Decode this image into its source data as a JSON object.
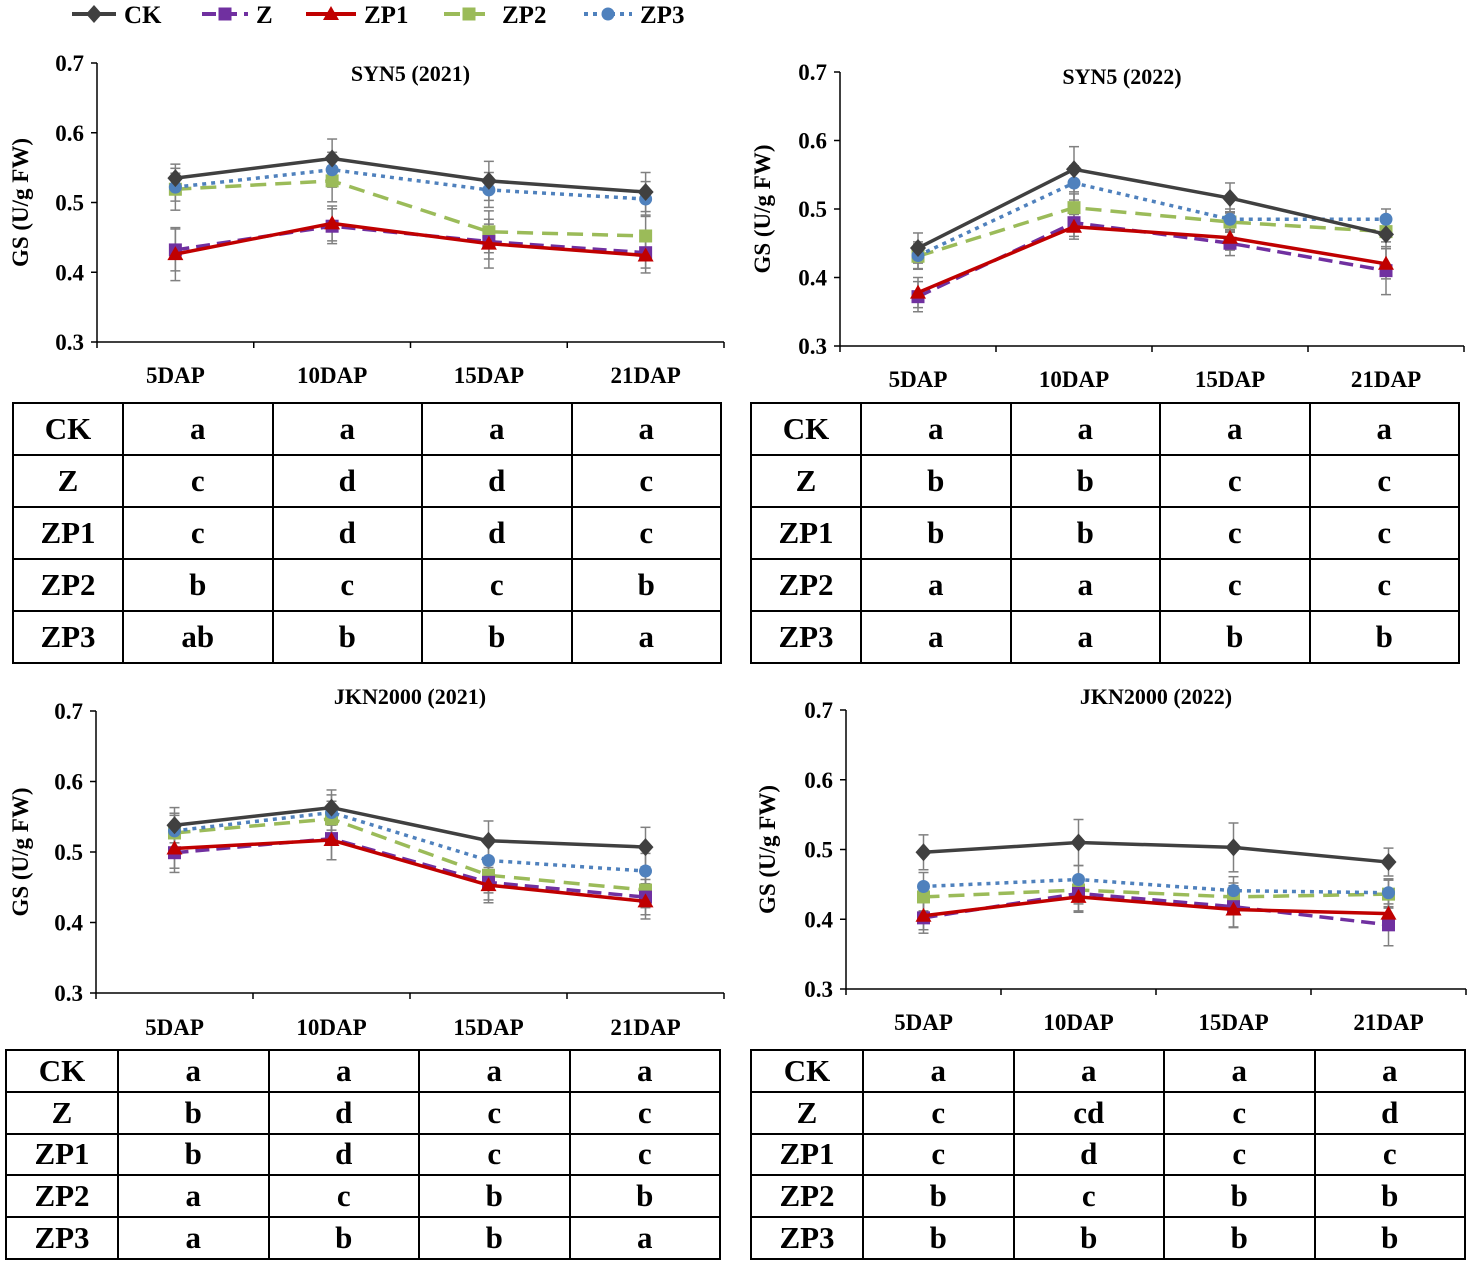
{
  "legend": [
    {
      "label": "CK",
      "color": "#404040",
      "marker": "diamond",
      "dash": "solid"
    },
    {
      "label": "Z",
      "color": "#7030A0",
      "marker": "square",
      "dash": "long-dash"
    },
    {
      "label": "ZP1",
      "color": "#C00000",
      "marker": "triangle",
      "dash": "solid"
    },
    {
      "label": "ZP2",
      "color": "#9BBB59",
      "marker": "square",
      "dash": "dash"
    },
    {
      "label": "ZP3",
      "color": "#4F81BD",
      "marker": "circle",
      "dash": "dot"
    }
  ],
  "chart_data": [
    {
      "type": "line",
      "title": "SYN5 (2021)",
      "ylabel": "GS (U/g FW)",
      "xlabel": "",
      "categories": [
        "5DAP",
        "10DAP",
        "15DAP",
        "21DAP"
      ],
      "ylim": [
        0.3,
        0.7
      ],
      "yticks": [
        0.3,
        0.4,
        0.5,
        0.6,
        0.7
      ],
      "ytick_labels": [
        "0.3",
        "0.4",
        "0.5",
        "0.6",
        "0.7"
      ],
      "series": [
        {
          "name": "CK",
          "values": [
            0.535,
            0.563,
            0.531,
            0.515
          ],
          "errors": [
            0.02,
            0.028,
            0.028,
            0.028
          ]
        },
        {
          "name": "Z",
          "values": [
            0.432,
            0.466,
            0.444,
            0.428
          ],
          "errors": [
            0.03,
            0.025,
            0.025,
            0.022
          ]
        },
        {
          "name": "ZP1",
          "values": [
            0.426,
            0.47,
            0.441,
            0.424
          ],
          "errors": [
            0.038,
            0.025,
            0.035,
            0.025
          ]
        },
        {
          "name": "ZP2",
          "values": [
            0.519,
            0.531,
            0.458,
            0.452
          ],
          "errors": [
            0.03,
            0.03,
            0.03,
            0.03
          ]
        },
        {
          "name": "ZP3",
          "values": [
            0.522,
            0.547,
            0.518,
            0.505
          ],
          "errors": [
            0.02,
            0.025,
            0.025,
            0.025
          ]
        }
      ],
      "significance": {
        "columns": [
          "5DAP",
          "10DAP",
          "15DAP",
          "21DAP"
        ],
        "rows": [
          {
            "label": "CK",
            "cells": [
              "a",
              "a",
              "a",
              "a"
            ]
          },
          {
            "label": "Z",
            "cells": [
              "c",
              "d",
              "d",
              "c"
            ]
          },
          {
            "label": "ZP1",
            "cells": [
              "c",
              "d",
              "d",
              "c"
            ]
          },
          {
            "label": "ZP2",
            "cells": [
              "b",
              "c",
              "c",
              "b"
            ]
          },
          {
            "label": "ZP3",
            "cells": [
              "ab",
              "b",
              "b",
              "a"
            ]
          }
        ]
      }
    },
    {
      "type": "line",
      "title": "SYN5 (2022)",
      "ylabel": "GS (U/g FW)",
      "xlabel": "",
      "categories": [
        "5DAP",
        "10DAP",
        "15DAP",
        "21DAP"
      ],
      "ylim": [
        0.3,
        0.7
      ],
      "yticks": [
        0.3,
        0.4,
        0.5,
        0.6,
        0.7
      ],
      "ytick_labels": [
        "0.3",
        "0.4",
        "0.5",
        "0.6",
        "0.7"
      ],
      "series": [
        {
          "name": "CK",
          "values": [
            0.443,
            0.558,
            0.516,
            0.463
          ],
          "errors": [
            0.022,
            0.033,
            0.022,
            0.018
          ]
        },
        {
          "name": "Z",
          "values": [
            0.372,
            0.48,
            0.45,
            0.41
          ],
          "errors": [
            0.022,
            0.02,
            0.018,
            0.035
          ]
        },
        {
          "name": "ZP1",
          "values": [
            0.378,
            0.474,
            0.458,
            0.42
          ],
          "errors": [
            0.022,
            0.018,
            0.018,
            0.022
          ]
        },
        {
          "name": "ZP2",
          "values": [
            0.431,
            0.502,
            0.481,
            0.467
          ],
          "errors": [
            0.018,
            0.02,
            0.015,
            0.015
          ]
        },
        {
          "name": "ZP3",
          "values": [
            0.432,
            0.538,
            0.485,
            0.485
          ],
          "errors": [
            0.02,
            0.025,
            0.015,
            0.015
          ]
        }
      ],
      "significance": {
        "columns": [
          "5DAP",
          "10DAP",
          "15DAP",
          "21DAP"
        ],
        "rows": [
          {
            "label": "CK",
            "cells": [
              "a",
              "a",
              "a",
              "a"
            ]
          },
          {
            "label": "Z",
            "cells": [
              "b",
              "b",
              "c",
              "c"
            ]
          },
          {
            "label": "ZP1",
            "cells": [
              "b",
              "b",
              "c",
              "c"
            ]
          },
          {
            "label": "ZP2",
            "cells": [
              "a",
              "a",
              "c",
              "c"
            ]
          },
          {
            "label": "ZP3",
            "cells": [
              "a",
              "a",
              "b",
              "b"
            ]
          }
        ]
      }
    },
    {
      "type": "line",
      "title": "JKN2000 (2021)",
      "ylabel": "GS (U/g FW)",
      "xlabel": "",
      "categories": [
        "5DAP",
        "10DAP",
        "15DAP",
        "21DAP"
      ],
      "ylim": [
        0.3,
        0.7
      ],
      "yticks": [
        0.3,
        0.4,
        0.5,
        0.6,
        0.7
      ],
      "ytick_labels": [
        "0.3",
        "0.4",
        "0.5",
        "0.6",
        "0.7"
      ],
      "series": [
        {
          "name": "CK",
          "values": [
            0.538,
            0.563,
            0.516,
            0.507
          ],
          "errors": [
            0.025,
            0.025,
            0.028,
            0.028
          ]
        },
        {
          "name": "Z",
          "values": [
            0.499,
            0.519,
            0.457,
            0.436
          ],
          "errors": [
            0.028,
            0.03,
            0.025,
            0.025
          ]
        },
        {
          "name": "ZP1",
          "values": [
            0.505,
            0.517,
            0.453,
            0.43
          ],
          "errors": [
            0.028,
            0.028,
            0.025,
            0.025
          ]
        },
        {
          "name": "ZP2",
          "values": [
            0.527,
            0.547,
            0.467,
            0.446
          ],
          "errors": [
            0.025,
            0.025,
            0.025,
            0.025
          ]
        },
        {
          "name": "ZP3",
          "values": [
            0.53,
            0.556,
            0.488,
            0.473
          ],
          "errors": [
            0.025,
            0.025,
            0.025,
            0.025
          ]
        }
      ],
      "significance": {
        "columns": [
          "5DAP",
          "10DAP",
          "15DAP",
          "21DAP"
        ],
        "rows": [
          {
            "label": "CK",
            "cells": [
              "a",
              "a",
              "a",
              "a"
            ]
          },
          {
            "label": "Z",
            "cells": [
              "b",
              "d",
              "c",
              "c"
            ]
          },
          {
            "label": "ZP1",
            "cells": [
              "b",
              "d",
              "c",
              "c"
            ]
          },
          {
            "label": "ZP2",
            "cells": [
              "a",
              "c",
              "b",
              "b"
            ]
          },
          {
            "label": "ZP3",
            "cells": [
              "a",
              "b",
              "b",
              "a"
            ]
          }
        ]
      }
    },
    {
      "type": "line",
      "title": "JKN2000 (2022)",
      "ylabel": "GS (U/g FW)",
      "xlabel": "",
      "categories": [
        "5DAP",
        "10DAP",
        "15DAP",
        "21DAP"
      ],
      "ylim": [
        0.3,
        0.7
      ],
      "yticks": [
        0.3,
        0.4,
        0.5,
        0.6,
        0.7
      ],
      "ytick_labels": [
        "0.3",
        "0.4",
        "0.5",
        "0.6",
        "0.7"
      ],
      "series": [
        {
          "name": "CK",
          "values": [
            0.496,
            0.51,
            0.503,
            0.482
          ],
          "errors": [
            0.025,
            0.033,
            0.035,
            0.02
          ]
        },
        {
          "name": "Z",
          "values": [
            0.402,
            0.437,
            0.418,
            0.392
          ],
          "errors": [
            0.022,
            0.025,
            0.03,
            0.03
          ]
        },
        {
          "name": "ZP1",
          "values": [
            0.405,
            0.432,
            0.414,
            0.408
          ],
          "errors": [
            0.02,
            0.022,
            0.025,
            0.02
          ]
        },
        {
          "name": "ZP2",
          "values": [
            0.432,
            0.442,
            0.432,
            0.436
          ],
          "errors": [
            0.02,
            0.02,
            0.02,
            0.02
          ]
        },
        {
          "name": "ZP3",
          "values": [
            0.447,
            0.457,
            0.441,
            0.438
          ],
          "errors": [
            0.02,
            0.02,
            0.02,
            0.02
          ]
        }
      ],
      "significance": {
        "columns": [
          "5DAP",
          "10DAP",
          "15DAP",
          "21DAP"
        ],
        "rows": [
          {
            "label": "CK",
            "cells": [
              "a",
              "a",
              "a",
              "a"
            ]
          },
          {
            "label": "Z",
            "cells": [
              "c",
              "cd",
              "c",
              "d"
            ]
          },
          {
            "label": "ZP1",
            "cells": [
              "c",
              "d",
              "c",
              "c"
            ]
          },
          {
            "label": "ZP2",
            "cells": [
              "b",
              "c",
              "b",
              "b"
            ]
          },
          {
            "label": "ZP3",
            "cells": [
              "b",
              "b",
              "b",
              "b"
            ]
          }
        ]
      }
    }
  ]
}
